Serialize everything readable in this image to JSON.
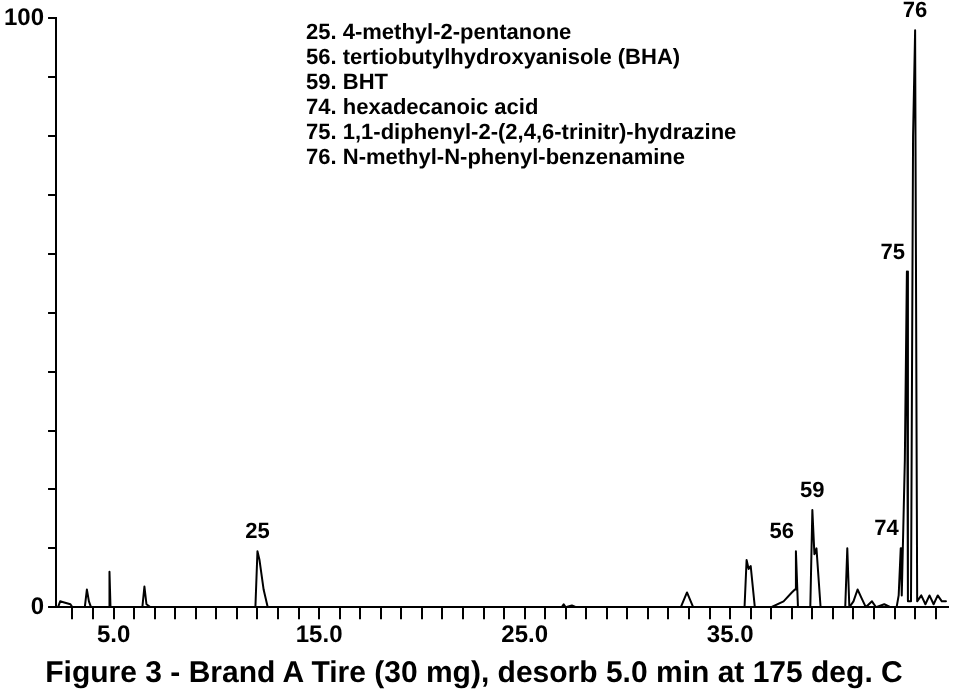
{
  "chart_data": {
    "type": "line",
    "title": "Figure 3 - Brand A Tire (30 mg), desorb 5.0 min at 175 deg. C",
    "x": [
      2.3,
      2.4,
      2.6,
      2.9,
      3.0,
      3.6,
      3.7,
      3.8,
      3.9,
      4.75,
      4.8,
      4.85,
      6.4,
      6.5,
      6.6,
      6.8,
      11.9,
      12.0,
      12.1,
      12.3,
      12.5,
      26.8,
      26.9,
      27.0,
      27.3,
      27.5,
      32.6,
      32.9,
      33.2,
      35.7,
      35.8,
      35.9,
      36.0,
      36.2,
      37.0,
      37.6,
      38.0,
      38.15,
      38.2,
      38.3,
      38.9,
      39.0,
      39.1,
      39.2,
      39.4,
      40.6,
      40.7,
      40.8,
      41.0,
      41.2,
      41.4,
      41.6,
      41.9,
      42.1,
      42.5,
      42.8,
      43.1,
      43.2,
      43.3,
      43.35,
      43.5,
      43.6,
      43.65,
      43.8,
      43.9,
      44.0,
      44.1,
      44.3,
      44.5,
      44.7,
      44.9,
      45.1,
      45.3,
      45.5
    ],
    "series": [
      {
        "color": "#000000",
        "values": [
          0,
          1,
          0.8,
          0.5,
          0,
          0,
          3,
          1,
          0,
          0,
          6,
          0,
          0,
          3.5,
          0.5,
          0,
          0,
          9.5,
          8,
          3,
          0,
          0,
          0.5,
          0,
          0.3,
          0,
          0,
          2.5,
          0,
          0,
          8,
          6.5,
          7,
          0,
          0,
          1,
          2.5,
          3,
          9.5,
          0,
          0,
          16.5,
          9,
          10,
          0,
          0,
          10,
          0,
          1,
          3,
          1.5,
          0,
          1,
          0,
          0.5,
          0,
          0,
          2,
          10,
          2,
          25,
          57,
          1,
          1,
          80,
          98,
          1,
          2,
          0.5,
          2,
          0.5,
          2,
          1,
          1
        ]
      }
    ],
    "xlim": [
      2.2,
      45.6
    ],
    "xticks": [
      {
        "value": 3,
        "label": null
      },
      {
        "value": 4,
        "label": null
      },
      {
        "value": 5,
        "label": "5.0"
      },
      {
        "value": 6,
        "label": null
      },
      {
        "value": 7,
        "label": null
      },
      {
        "value": 8,
        "label": null
      },
      {
        "value": 9,
        "label": null
      },
      {
        "value": 10,
        "label": null
      },
      {
        "value": 11,
        "label": null
      },
      {
        "value": 12,
        "label": null
      },
      {
        "value": 13,
        "label": null
      },
      {
        "value": 14,
        "label": null
      },
      {
        "value": 15,
        "label": "15.0"
      },
      {
        "value": 16,
        "label": null
      },
      {
        "value": 17,
        "label": null
      },
      {
        "value": 18,
        "label": null
      },
      {
        "value": 19,
        "label": null
      },
      {
        "value": 20,
        "label": null
      },
      {
        "value": 21,
        "label": null
      },
      {
        "value": 22,
        "label": null
      },
      {
        "value": 23,
        "label": null
      },
      {
        "value": 24,
        "label": null
      },
      {
        "value": 25,
        "label": "25.0"
      },
      {
        "value": 26,
        "label": null
      },
      {
        "value": 27,
        "label": null
      },
      {
        "value": 28,
        "label": null
      },
      {
        "value": 29,
        "label": null
      },
      {
        "value": 30,
        "label": null
      },
      {
        "value": 31,
        "label": null
      },
      {
        "value": 32,
        "label": null
      },
      {
        "value": 33,
        "label": null
      },
      {
        "value": 34,
        "label": null
      },
      {
        "value": 35,
        "label": "35.0"
      },
      {
        "value": 36,
        "label": null
      },
      {
        "value": 37,
        "label": null
      },
      {
        "value": 38,
        "label": null
      },
      {
        "value": 39,
        "label": null
      },
      {
        "value": 40,
        "label": null
      },
      {
        "value": 41,
        "label": null
      },
      {
        "value": 42,
        "label": null
      },
      {
        "value": 43,
        "label": null
      },
      {
        "value": 44,
        "label": null
      },
      {
        "value": 45,
        "label": null
      }
    ],
    "ylim": [
      0,
      100
    ],
    "yticks": [
      0,
      {
        "value": 10,
        "label": null
      },
      {
        "value": 20,
        "label": null
      },
      {
        "value": 30,
        "label": null
      },
      {
        "value": 40,
        "label": null
      },
      {
        "value": 50,
        "label": null
      },
      {
        "value": 60,
        "label": null
      },
      {
        "value": 70,
        "label": null
      },
      {
        "value": 80,
        "label": null
      },
      {
        "value": 90,
        "label": null
      },
      100
    ],
    "grid": false,
    "legend": false,
    "marker": "none",
    "line_style": "solid",
    "annotations": [
      "25. 4-methyl-2-pentanone",
      "56. tertiobutylhydroxyanisole (BHA)",
      "59. BHT",
      "74. hexadecanoic acid",
      "75. 1,1-diphenyl-2-(2,4,6-trinitr)-hydrazine",
      "76. N-methyl-N-phenyl-benzenamine",
      {
        "text": "25",
        "x": 12.0,
        "y": 9.5
      },
      {
        "text": "56",
        "x": 38.2,
        "y": 9.5
      },
      {
        "text": "59",
        "x": 39.0,
        "y": 16.5
      },
      {
        "text": "74",
        "x": 43.3,
        "y": 10
      },
      {
        "text": "75",
        "x": 43.6,
        "y": 57
      },
      {
        "text": "76",
        "x": 44.0,
        "y": 98
      }
    ]
  }
}
